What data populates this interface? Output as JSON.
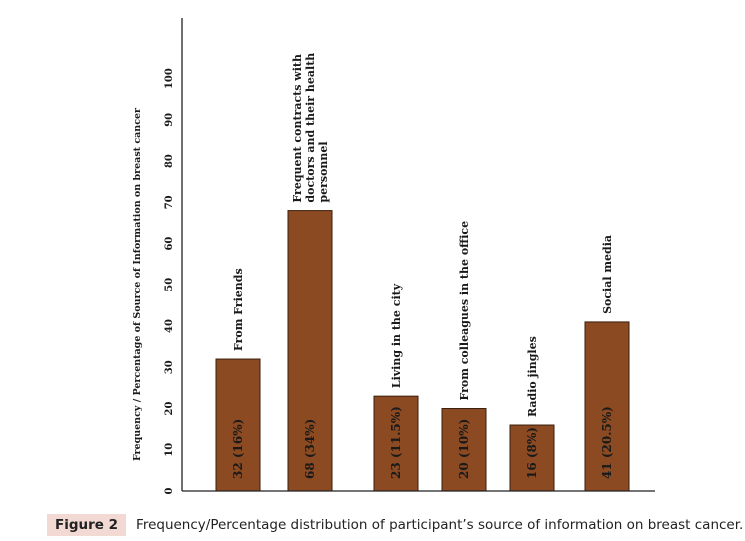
{
  "chart_data": {
    "type": "bar",
    "categories": [
      "From Friends",
      "Frequent contracts with doctors and their health personnel",
      "Living in the city",
      "From colleagues in the office",
      "Radio jingles",
      "Social media"
    ],
    "category_label_lines": [
      [
        "From Friends"
      ],
      [
        "Frequent contracts with",
        "doctors and their health",
        "personnel"
      ],
      [
        "Living in the city"
      ],
      [
        "From colleagues in the office"
      ],
      [
        "Radio jingles"
      ],
      [
        "Social media"
      ]
    ],
    "values": [
      32,
      68,
      23,
      20,
      16,
      41
    ],
    "data_labels": [
      "32 (16%)",
      "68 (34%)",
      "23 (11.5%)",
      "20 (10%)",
      "16 (8%)",
      "41 (20.5%)"
    ],
    "ylabel": "Frequency / Percentage of Source of Information on breast cancer",
    "yticks": [
      0,
      10,
      20,
      30,
      40,
      50,
      60,
      70,
      80,
      90,
      100
    ],
    "ylim": [
      0,
      105
    ],
    "bar_color": "#8b4a22",
    "grid": false,
    "legend": "none"
  },
  "caption": {
    "label": "Figure 2",
    "text": "Frequency/Percentage distribution of participant’s source of information on breast cancer."
  }
}
